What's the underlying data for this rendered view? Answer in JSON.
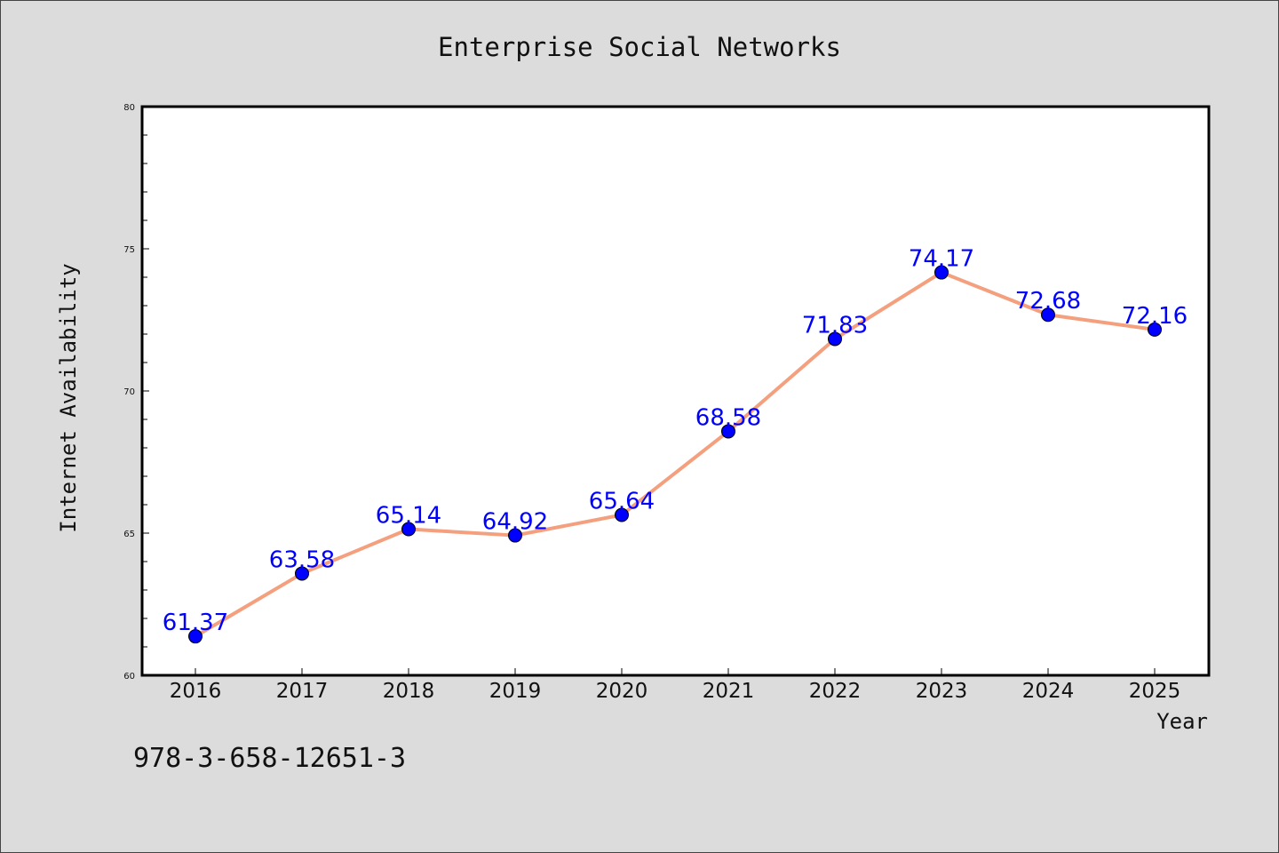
{
  "chart_data": {
    "type": "line",
    "title": "Enterprise Social Networks",
    "xlabel": "Year",
    "ylabel": "Internet Availability",
    "categories": [
      "2016",
      "2017",
      "2018",
      "2019",
      "2020",
      "2021",
      "2022",
      "2023",
      "2024",
      "2025"
    ],
    "series": [
      {
        "values": [
          61.37,
          63.58,
          65.14,
          64.92,
          65.64,
          68.58,
          71.83,
          74.17,
          72.68,
          72.16
        ],
        "line_color": "#f4a07e",
        "marker_color": "#0000ff"
      }
    ],
    "data_labels": [
      "61.37",
      "63.58",
      "65.14",
      "64.92",
      "65.64",
      "68.58",
      "71.83",
      "74.17",
      "72.68",
      "72.16"
    ],
    "ylim": [
      60,
      80
    ],
    "yticks": [
      60,
      65,
      70,
      75,
      80
    ],
    "grid": false,
    "legend": "none"
  },
  "footer": {
    "isbn": "978-3-658-12651-3"
  },
  "colors": {
    "background": "#dcdcdc",
    "plot_background": "#ffffff",
    "line": "#f4a07e",
    "marker": "#0000ff",
    "label": "#0000ff"
  }
}
